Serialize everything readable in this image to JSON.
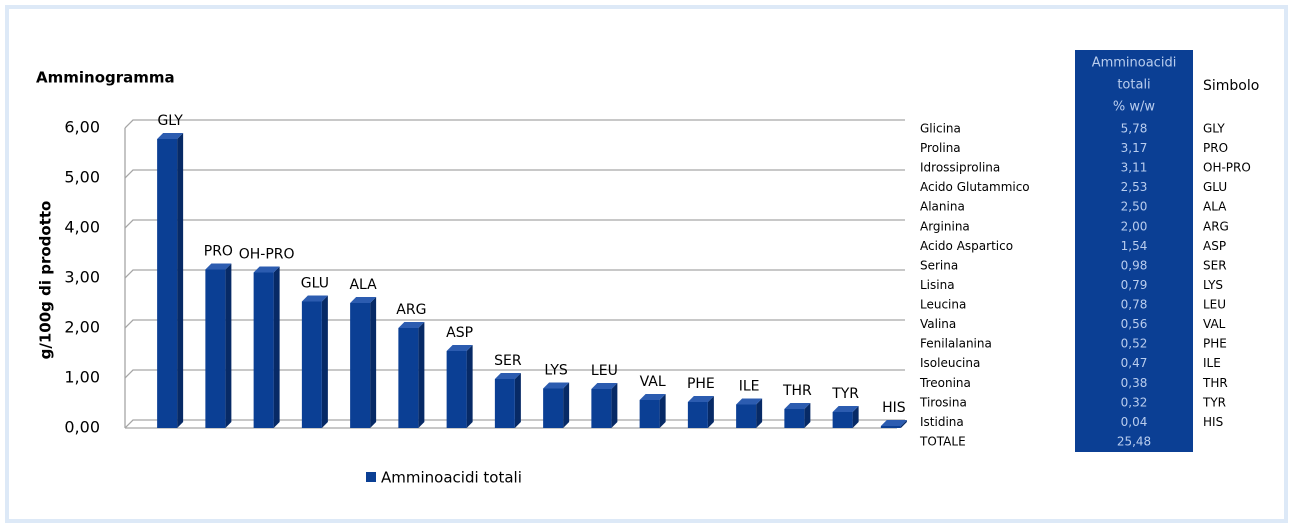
{
  "chart_data": {
    "type": "bar",
    "title": "Amminogramma",
    "y_label": "g/100g di prodotto",
    "categories": [
      "GLY",
      "PRO",
      "OH-PRO",
      "GLU",
      "ALA",
      "ARG",
      "ASP",
      "SER",
      "LYS",
      "LEU",
      "VAL",
      "PHE",
      "ILE",
      "THR",
      "TYR",
      "HIS"
    ],
    "series": [
      {
        "name": "Amminoacidi totali",
        "color": "#0b3f94",
        "values": [
          5.78,
          3.17,
          3.11,
          2.53,
          2.5,
          2.0,
          1.54,
          0.98,
          0.79,
          0.78,
          0.56,
          0.52,
          0.47,
          0.38,
          0.32,
          0.04
        ]
      }
    ],
    "ylim": [
      0,
      6
    ],
    "yticks": [
      {
        "value": 0,
        "label": "0,00"
      },
      {
        "value": 1,
        "label": "1,00"
      },
      {
        "value": 2,
        "label": "2,00"
      },
      {
        "value": 3,
        "label": "3,00"
      },
      {
        "value": 4,
        "label": "4,00"
      },
      {
        "value": 5,
        "label": "5,00"
      },
      {
        "value": 6,
        "label": "6,00"
      }
    ],
    "grid": true,
    "legend": "bottom"
  },
  "table": {
    "header": [
      [
        "Amminoacidi",
        "totali",
        "% w/w"
      ],
      "Simbolo"
    ],
    "rows": [
      [
        "Glicina",
        "5,78",
        "GLY"
      ],
      [
        "Prolina",
        "3,17",
        "PRO"
      ],
      [
        "Idrossiprolina",
        "3,11",
        "OH-PRO"
      ],
      [
        "Acido Glutammico",
        "2,53",
        "GLU"
      ],
      [
        "Alanina",
        "2,50",
        "ALA"
      ],
      [
        "Arginina",
        "2,00",
        "ARG"
      ],
      [
        "Acido Aspartico",
        "1,54",
        "ASP"
      ],
      [
        "Serina",
        "0,98",
        "SER"
      ],
      [
        "Lisina",
        "0,79",
        "LYS"
      ],
      [
        "Leucina",
        "0,78",
        "LEU"
      ],
      [
        "Valina",
        "0,56",
        "VAL"
      ],
      [
        "Fenilalanina",
        "0,52",
        "PHE"
      ],
      [
        "Isoleucina",
        "0,47",
        "ILE"
      ],
      [
        "Treonina",
        "0,38",
        "THR"
      ],
      [
        "Tirosina",
        "0,32",
        "TYR"
      ],
      [
        "Istidina",
        "0,04",
        "HIS"
      ],
      [
        "TOTALE",
        "25,48"
      ]
    ]
  }
}
